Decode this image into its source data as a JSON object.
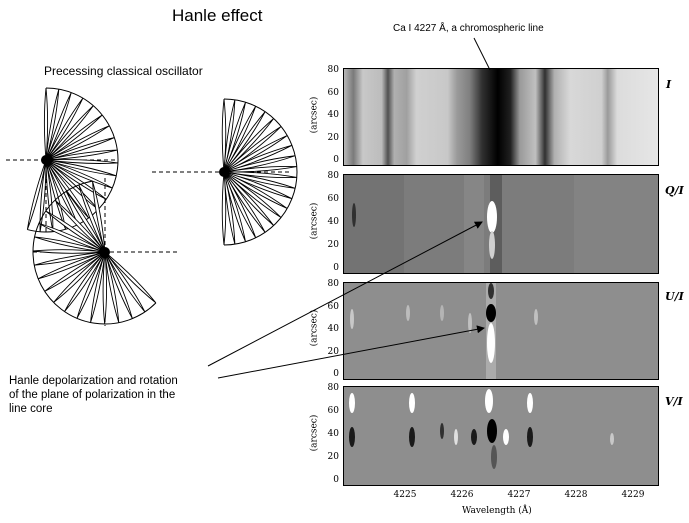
{
  "title": "Hanle effect",
  "line_label": "Ca I 4227 Å, a chromospheric line",
  "oscillator_label": "Precessing classical oscillator",
  "hanle_text": [
    "Hanle depolarization and rotation",
    "of the plane of  polarization in the",
    "line core"
  ],
  "panels": [
    {
      "label": "I",
      "ylabel": "(arcsec)",
      "yticks": [
        "80",
        "60",
        "40",
        "20",
        "0"
      ]
    },
    {
      "label": "Q/I",
      "ylabel": "(arcsec)",
      "yticks": [
        "80",
        "60",
        "40",
        "20",
        "0"
      ]
    },
    {
      "label": "U/I",
      "ylabel": "(arcsec)",
      "yticks": [
        "80",
        "60",
        "40",
        "20",
        "0"
      ]
    },
    {
      "label": "V/I",
      "ylabel": "(arcsec)",
      "yticks": [
        "80",
        "60",
        "40",
        "20",
        "0"
      ]
    }
  ],
  "xticks": [
    "4225",
    "4226",
    "4227",
    "4228",
    "4229"
  ],
  "xlabel": "Wavelength (Å)",
  "colors": {
    "line": "#000000",
    "background": "#ffffff"
  }
}
